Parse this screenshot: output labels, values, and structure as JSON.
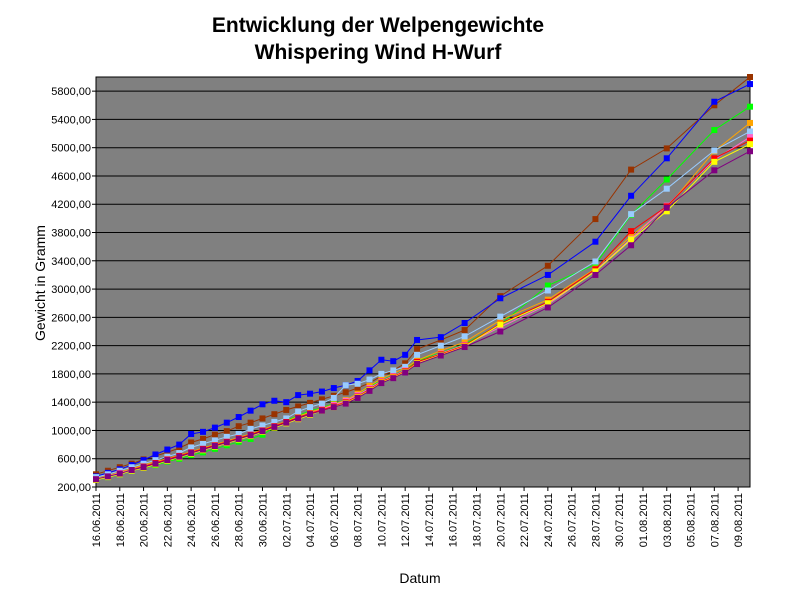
{
  "chart_data": {
    "type": "line",
    "title": "Entwicklung der Welpengewichte",
    "subtitle": "Whispering Wind H-Wurf",
    "xlabel": "Datum",
    "ylabel": "Gewicht in Gramm",
    "ylim": [
      200,
      6000
    ],
    "yticks": [
      "200,00",
      "600,00",
      "1000,00",
      "1400,00",
      "1800,00",
      "2200,00",
      "2600,00",
      "3000,00",
      "3400,00",
      "3800,00",
      "4200,00",
      "4600,00",
      "5000,00",
      "5400,00",
      "5800,00"
    ],
    "xlim": [
      "16.06.2011",
      "10.08.2011"
    ],
    "xticks": [
      "16.06.2011",
      "18.06.2011",
      "20.06.2011",
      "22.06.2011",
      "24.06.2011",
      "26.06.2011",
      "28.06.2011",
      "30.06.2011",
      "02.07.2011",
      "04.07.2011",
      "06.07.2011",
      "08.07.2011",
      "10.07.2011",
      "12.07.2011",
      "14.07.2011",
      "16.07.2011",
      "18.07.2011",
      "20.07.2011",
      "22.07.2011",
      "24.07.2011",
      "26.07.2011",
      "28.07.2011",
      "30.07.2011",
      "01.08.2011",
      "03.08.2011",
      "05.08.2011",
      "07.08.2011",
      "09.08.2011"
    ],
    "plot_background": "#808080",
    "grid": true,
    "legend": "none",
    "x": [
      "16.06.2011",
      "17.06.2011",
      "18.06.2011",
      "19.06.2011",
      "20.06.2011",
      "21.06.2011",
      "22.06.2011",
      "23.06.2011",
      "24.06.2011",
      "25.06.2011",
      "26.06.2011",
      "27.06.2011",
      "28.06.2011",
      "29.06.2011",
      "30.06.2011",
      "01.07.2011",
      "02.07.2011",
      "03.07.2011",
      "04.07.2011",
      "05.07.2011",
      "06.07.2011",
      "07.07.2011",
      "08.07.2011",
      "09.07.2011",
      "10.07.2011",
      "11.07.2011",
      "12.07.2011",
      "13.07.2011",
      "15.07.2011",
      "17.07.2011",
      "20.07.2011",
      "24.07.2011",
      "28.07.2011",
      "31.07.2011",
      "03.08.2011",
      "07.08.2011",
      "10.08.2011"
    ],
    "series": [
      {
        "color": "#993300",
        "values": [
          380,
          430,
          480,
          530,
          590,
          640,
          690,
          750,
          830,
          880,
          940,
          990,
          1060,
          1110,
          1170,
          1230,
          1290,
          1340,
          1390,
          1440,
          1490,
          1540,
          1600,
          1670,
          1770,
          1850,
          1950,
          2150,
          2280,
          2420,
          2900,
          3330,
          3990,
          4690,
          4990,
          5600,
          6000
        ]
      },
      {
        "color": "#0000ff",
        "values": [
          350,
          400,
          450,
          510,
          580,
          660,
          730,
          800,
          950,
          980,
          1040,
          1110,
          1190,
          1280,
          1370,
          1420,
          1400,
          1500,
          1520,
          1550,
          1600,
          1640,
          1700,
          1850,
          2000,
          1980,
          2070,
          2280,
          2320,
          2520,
          2870,
          3200,
          3670,
          4320,
          4850,
          5650,
          5900
        ]
      },
      {
        "color": "#00ff00",
        "values": [
          300,
          340,
          380,
          430,
          470,
          510,
          560,
          600,
          650,
          690,
          740,
          790,
          840,
          880,
          940,
          1040,
          1140,
          1210,
          1280,
          1320,
          1380,
          1430,
          1500,
          1620,
          1710,
          1780,
          1850,
          1980,
          2100,
          2220,
          2500,
          3050,
          3350,
          4050,
          4550,
          5250,
          5580
        ]
      },
      {
        "color": "#ffa500",
        "values": [
          320,
          360,
          410,
          460,
          510,
          560,
          600,
          650,
          700,
          750,
          800,
          850,
          900,
          950,
          1010,
          1070,
          1130,
          1200,
          1260,
          1310,
          1370,
          1430,
          1520,
          1630,
          1730,
          1810,
          1880,
          1990,
          2130,
          2250,
          2560,
          2850,
          3290,
          3750,
          4150,
          4950,
          5350
        ]
      },
      {
        "color": "#99ccff",
        "values": [
          340,
          380,
          430,
          480,
          530,
          580,
          630,
          680,
          760,
          810,
          860,
          910,
          950,
          1020,
          1070,
          1120,
          1170,
          1270,
          1330,
          1380,
          1460,
          1640,
          1660,
          1720,
          1800,
          1850,
          1900,
          2070,
          2200,
          2330,
          2610,
          2980,
          3390,
          4060,
          4420,
          4960,
          5230
        ]
      },
      {
        "color": "#ff66cc",
        "values": [
          310,
          350,
          400,
          440,
          490,
          540,
          590,
          630,
          680,
          730,
          780,
          830,
          880,
          930,
          990,
          1050,
          1110,
          1170,
          1240,
          1300,
          1360,
          1420,
          1500,
          1600,
          1700,
          1770,
          1850,
          1960,
          2090,
          2210,
          2460,
          2780,
          3260,
          3710,
          4180,
          4830,
          5150
        ]
      },
      {
        "color": "#ff0000",
        "values": [
          305,
          345,
          390,
          440,
          490,
          540,
          590,
          640,
          690,
          740,
          790,
          840,
          890,
          940,
          1000,
          1060,
          1120,
          1180,
          1240,
          1290,
          1340,
          1400,
          1480,
          1580,
          1690,
          1760,
          1840,
          1970,
          2080,
          2200,
          2510,
          2820,
          3280,
          3820,
          4170,
          4850,
          5100
        ]
      },
      {
        "color": "#ffff00",
        "values": [
          300,
          340,
          380,
          430,
          470,
          520,
          570,
          620,
          670,
          720,
          770,
          820,
          870,
          920,
          980,
          1040,
          1100,
          1160,
          1220,
          1280,
          1330,
          1390,
          1470,
          1570,
          1680,
          1750,
          1830,
          1950,
          2070,
          2190,
          2500,
          2800,
          3250,
          3700,
          4100,
          4800,
          5050
        ]
      },
      {
        "color": "#800080",
        "values": [
          310,
          350,
          390,
          440,
          480,
          530,
          580,
          630,
          680,
          730,
          780,
          830,
          880,
          930,
          990,
          1050,
          1110,
          1170,
          1230,
          1280,
          1330,
          1380,
          1460,
          1560,
          1670,
          1740,
          1820,
          1940,
          2060,
          2180,
          2400,
          2740,
          3200,
          3620,
          4150,
          4680,
          4950
        ]
      }
    ]
  }
}
